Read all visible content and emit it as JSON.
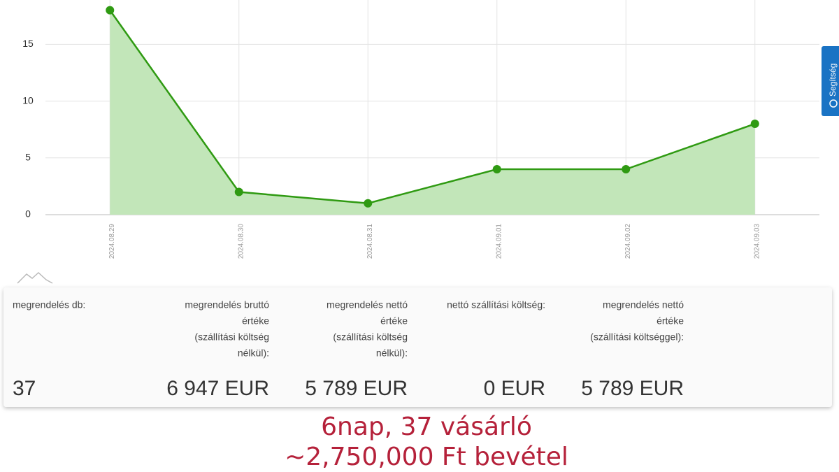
{
  "chart_data": {
    "type": "line",
    "categories": [
      "2024.08.29",
      "2024.08.30",
      "2024.08.31",
      "2024.09.01",
      "2024.09.02",
      "2024.09.03"
    ],
    "values": [
      18,
      2,
      1,
      4,
      4,
      8
    ],
    "color": "#2f9a12",
    "fill_color": "#c2e6b9",
    "ylim": [
      0,
      18.9
    ],
    "yticks": [
      0,
      5,
      10,
      15
    ],
    "grid": true
  },
  "stats": [
    {
      "label": [
        "megrendelés db:"
      ],
      "value": "37"
    },
    {
      "label": [
        "megrendelés bruttó",
        "értéke",
        "(szállítási költség",
        "nélkül):"
      ],
      "value": "6 947 EUR"
    },
    {
      "label": [
        "megrendelés nettó",
        "értéke",
        "(szállítási költség",
        "nélkül):"
      ],
      "value": "5 789 EUR"
    },
    {
      "label": [
        "nettó szállítási költség:"
      ],
      "value": "0 EUR"
    },
    {
      "label": [
        "megrendelés nettó",
        "értéke",
        "(szállítási költséggel):"
      ],
      "value": "5 789 EUR"
    }
  ],
  "help_tab": {
    "label": "Segítség"
  },
  "caption": [
    "6nap, 37 vásárló",
    "~2,750,000 Ft bevétel"
  ]
}
